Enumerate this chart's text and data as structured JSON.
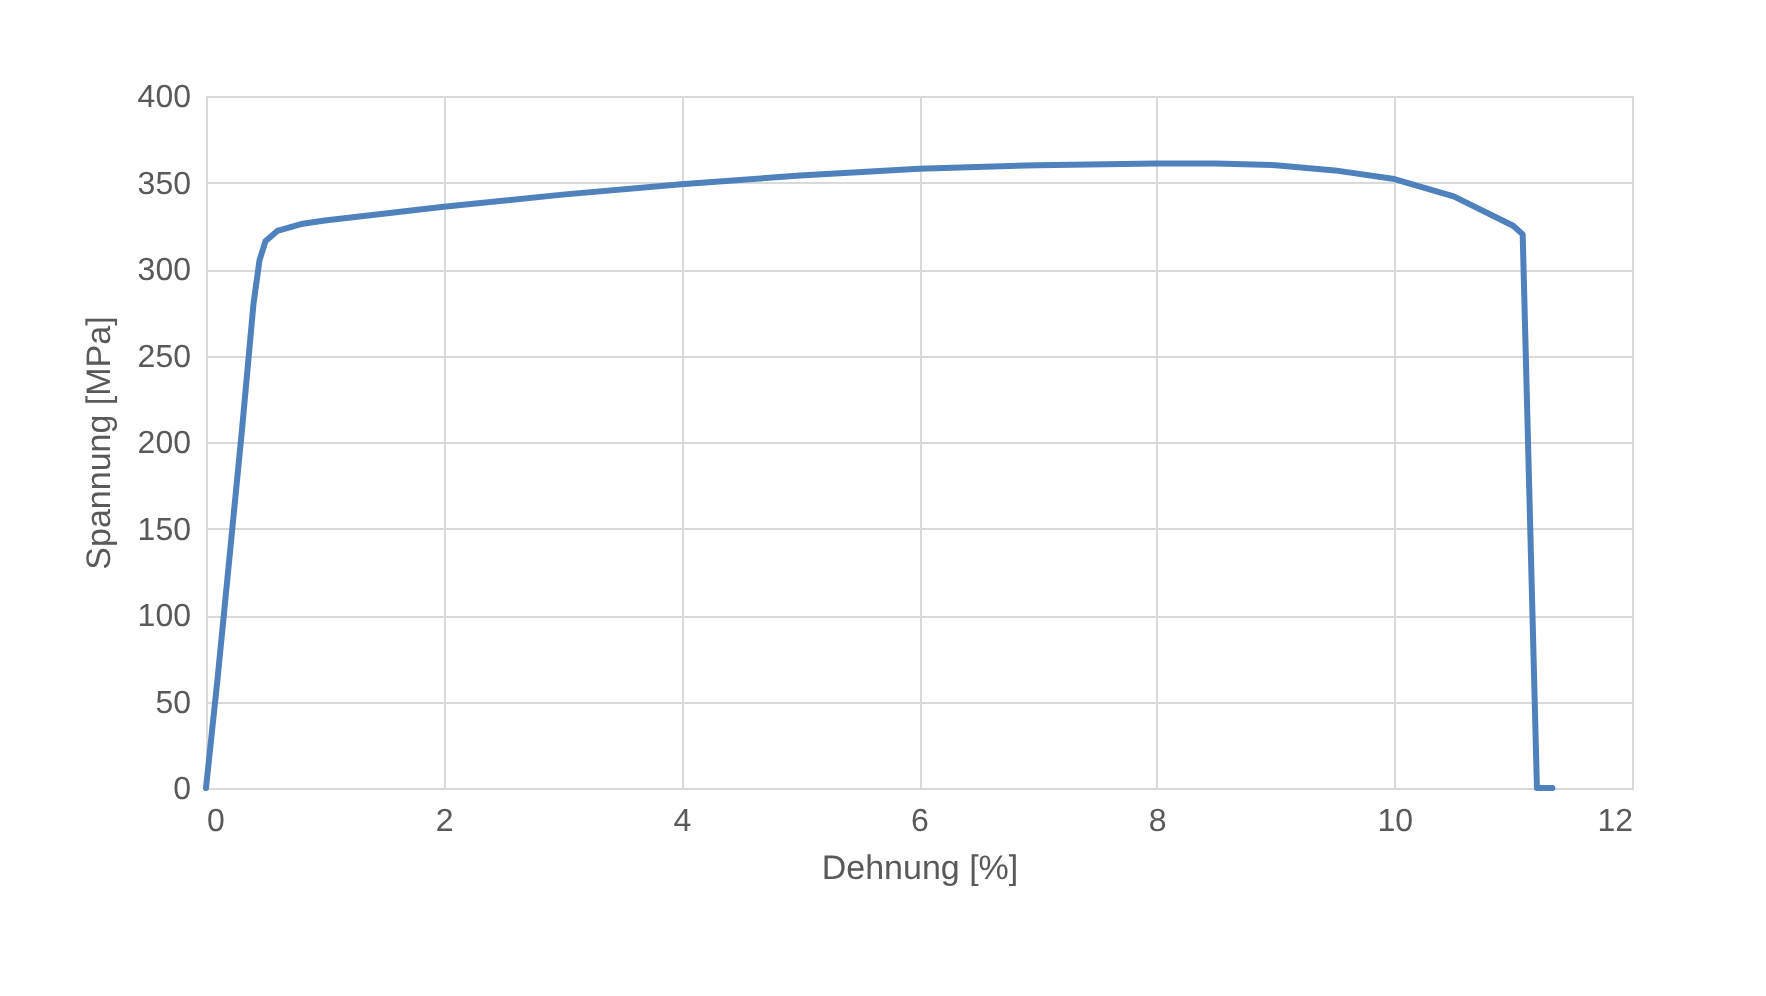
{
  "chart_data": {
    "type": "line",
    "xlabel": "Dehnung [%]",
    "ylabel": "Spannung [MPa]",
    "x": [
      0,
      0.1,
      0.2,
      0.3,
      0.4,
      0.45,
      0.5,
      0.6,
      0.8,
      1,
      2,
      3,
      4,
      5,
      6,
      7,
      8,
      8.5,
      9,
      9.5,
      10,
      10.5,
      11,
      11.08,
      11.2,
      11.33
    ],
    "series": [
      {
        "color": "#4f81bd",
        "values": [
          0,
          65,
          135,
          205,
          280,
          305,
          316,
          322,
          326,
          328,
          336,
          343,
          349,
          354,
          358,
          360,
          361,
          361,
          360,
          357,
          352,
          342,
          325,
          320,
          0,
          0
        ]
      }
    ],
    "xlim": [
      0,
      12
    ],
    "xticks": [
      0,
      2,
      4,
      6,
      8,
      10,
      12
    ],
    "ylim": [
      0,
      400
    ],
    "yticks": [
      0,
      50,
      100,
      150,
      200,
      250,
      300,
      350,
      400
    ],
    "grid": true,
    "marker": "none",
    "line_style": "solid"
  }
}
